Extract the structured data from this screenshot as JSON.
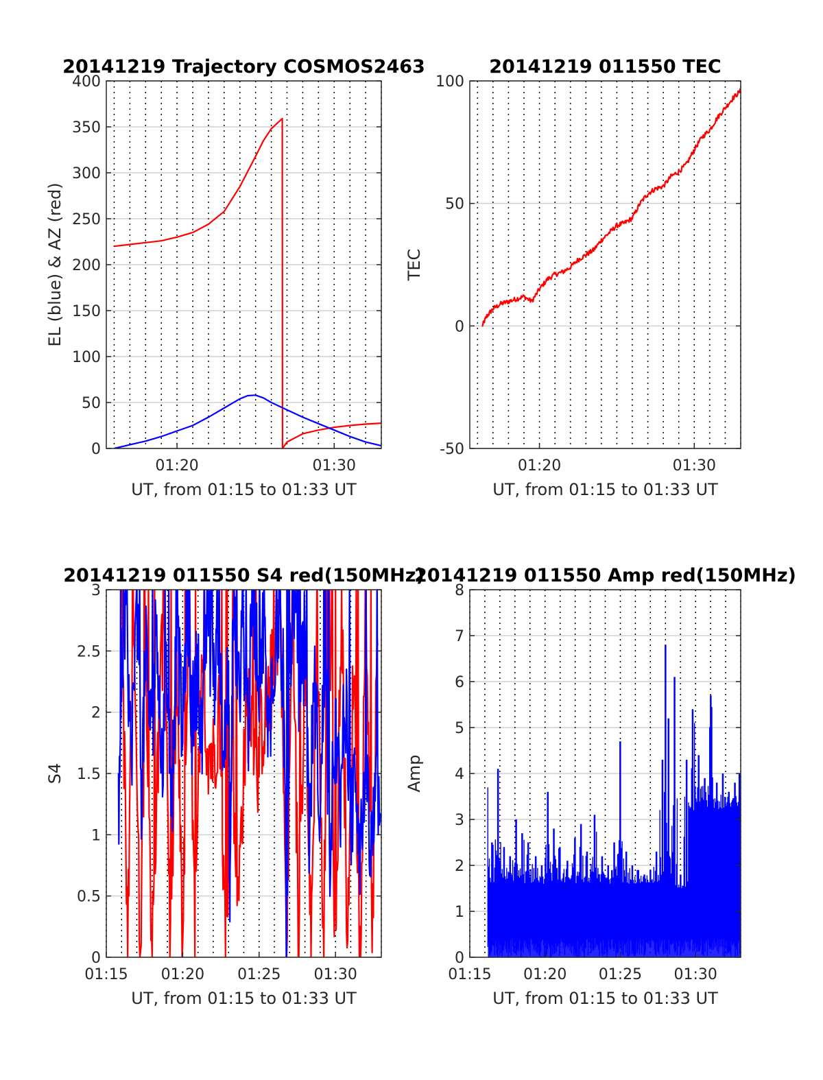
{
  "colors": {
    "red": "#ff0000",
    "blue": "#0000ff",
    "axis": "#262626",
    "grid": "#d0d0d0",
    "vgrid": "#000000"
  },
  "chart_data": [
    {
      "type": "line",
      "title": "20141219 Trajectory COSMOS2463",
      "xlabel": "UT, from 01:15 to 01:33 UT",
      "ylabel": "EL (blue) & AZ (red)",
      "xlim_min": [
        75.5,
        93
      ],
      "ylim": [
        0,
        400
      ],
      "yticks": [
        0,
        50,
        100,
        150,
        200,
        250,
        300,
        350,
        400
      ],
      "xtick_labels": [
        {
          "t": 80,
          "label": "01:20"
        },
        {
          "t": 90,
          "label": "01:30"
        }
      ],
      "grid": true,
      "series": [
        {
          "color": "red",
          "x": [
            76,
            77,
            78,
            79,
            80,
            81,
            82,
            83,
            84,
            85,
            85.5,
            86,
            86.5,
            86.7,
            86.71,
            87,
            88,
            89,
            90,
            91,
            92,
            93
          ],
          "y": [
            220,
            222,
            224,
            226,
            230,
            235,
            244,
            258,
            285,
            318,
            335,
            348,
            356,
            359,
            0,
            7,
            16,
            20,
            23,
            25,
            26.5,
            27.5
          ]
        },
        {
          "color": "blue",
          "x": [
            76,
            77,
            78,
            79,
            80,
            81,
            82,
            83,
            84,
            84.5,
            85,
            85.5,
            86,
            87,
            88,
            89,
            90,
            91,
            92,
            93
          ],
          "y": [
            0,
            4,
            8,
            13,
            19,
            25,
            34,
            44,
            54,
            57.5,
            58,
            55,
            50,
            42,
            34,
            27,
            20,
            13,
            7,
            3
          ]
        }
      ]
    },
    {
      "type": "line",
      "title": "20141219 011550 TEC",
      "xlabel": "UT, from 01:15 to 01:33 UT",
      "ylabel": "TEC",
      "xlim_min": [
        75.5,
        93
      ],
      "ylim": [
        -50,
        100
      ],
      "yticks": [
        -50,
        0,
        50,
        100
      ],
      "xtick_labels": [
        {
          "t": 80,
          "label": "01:20"
        },
        {
          "t": 90,
          "label": "01:30"
        }
      ],
      "grid": true,
      "series": [
        {
          "color": "red",
          "x": [
            76.3,
            76.6,
            77,
            77.5,
            78,
            78.5,
            79,
            79.5,
            80,
            80.5,
            81,
            81.5,
            82,
            82.5,
            83,
            83.5,
            84,
            84.5,
            85,
            85.5,
            86,
            86.5,
            87,
            87.5,
            88,
            88.5,
            89,
            89.5,
            90,
            90.5,
            91,
            91.5,
            92,
            92.5,
            93
          ],
          "y": [
            0,
            4,
            7,
            9,
            10,
            11,
            12,
            10,
            15,
            19,
            21,
            22,
            24,
            27,
            29,
            31,
            35,
            38,
            41,
            42,
            44,
            50,
            54,
            56,
            57,
            61,
            63,
            66,
            72,
            77,
            80,
            85,
            89,
            93,
            96
          ]
        }
      ]
    },
    {
      "type": "line",
      "title": "20141219 011550 S4 red(150MHz)",
      "xlabel": "UT, from 01:15 to 01:33 UT",
      "ylabel": "S4",
      "xlim_min": [
        75,
        93
      ],
      "ylim": [
        0,
        3
      ],
      "yticks": [
        0,
        0.5,
        1,
        1.5,
        2,
        2.5,
        3
      ],
      "xtick_labels": [
        {
          "t": 75,
          "label": "01:15"
        },
        {
          "t": 80,
          "label": "01:20"
        },
        {
          "t": 85,
          "label": "01:25"
        },
        {
          "t": 90,
          "label": "01:30"
        }
      ],
      "grid": true,
      "series": [
        {
          "color": "red",
          "x": [
            76,
            76.4,
            76.8,
            77.2,
            77.6,
            78,
            78.4,
            78.8,
            79.2,
            79.6,
            80,
            80.4,
            80.8,
            81.2,
            81.6,
            82,
            82.4,
            82.8,
            83.2,
            83.6,
            84,
            84.4,
            84.8,
            85.2,
            85.6,
            86,
            86.4,
            86.8,
            87.2,
            87.6,
            88,
            88.4,
            88.8,
            89.2,
            89.6,
            90,
            90.4,
            90.8,
            91.2,
            91.6,
            92,
            92.4,
            92.8
          ],
          "y": [
            3,
            0,
            3,
            0,
            2.6,
            0,
            1.7,
            3,
            0,
            2.4,
            0,
            3,
            0,
            2.2,
            1.8,
            1.6,
            2.1,
            0,
            1.8,
            0.3,
            1.6,
            2.2,
            1.5,
            1.9,
            2.1,
            2.4,
            3,
            0,
            3,
            0,
            2.7,
            0,
            2.9,
            0,
            3,
            0,
            3,
            0,
            2.5,
            0,
            3,
            0,
            3
          ]
        },
        {
          "color": "blue",
          "x": [
            75.8,
            76,
            76.3,
            76.6,
            77,
            77.3,
            77.6,
            78,
            78.3,
            78.6,
            79,
            79.3,
            79.6,
            80,
            80.3,
            80.6,
            81,
            81.3,
            81.6,
            82,
            82.3,
            82.6,
            83,
            83.1,
            83.3,
            83.6,
            84,
            84.3,
            84.6,
            85,
            85.3,
            85.6,
            86,
            86.3,
            86.6,
            86.8,
            87,
            87.3,
            87.6,
            88,
            88.3,
            88.6,
            89,
            89.3,
            89.6,
            90,
            90.3,
            90.6,
            91,
            91.3,
            91.6,
            92,
            92.3,
            92.6,
            93
          ],
          "y": [
            1.1,
            2.4,
            3,
            1.6,
            2.8,
            1.4,
            2.5,
            1.7,
            2.9,
            1.5,
            2.3,
            1.3,
            2.7,
            1.8,
            3,
            1.9,
            2.4,
            1.7,
            3,
            2.1,
            2.8,
            1.9,
            2.2,
            0.3,
            3,
            2.1,
            2.6,
            1.9,
            3,
            2.3,
            2.7,
            1.8,
            2.5,
            2.9,
            2.2,
            0,
            2.4,
            3,
            2.1,
            2.6,
            0.9,
            2.4,
            1.1,
            2.6,
            0.8,
            1.9,
            1.2,
            2.3,
            1,
            1.6,
            0.9,
            1.4,
            0.8,
            1.2,
            1.5
          ]
        }
      ]
    },
    {
      "type": "line",
      "title": "20141219 011550 Amp red(150MHz)",
      "xlabel": "UT, from 01:15 to 01:33 UT",
      "ylabel": "Amp",
      "xlim_min": [
        75,
        93
      ],
      "ylim": [
        0,
        8
      ],
      "yticks": [
        0,
        1,
        2,
        3,
        4,
        5,
        6,
        7,
        8
      ],
      "xtick_labels": [
        {
          "t": 75,
          "label": "01:15"
        },
        {
          "t": 80,
          "label": "01:20"
        },
        {
          "t": 85,
          "label": "01:25"
        },
        {
          "t": 90,
          "label": "01:30"
        }
      ],
      "grid": true,
      "peaks": {
        "x": [
          76.2,
          76.5,
          76.9,
          77.3,
          77.7,
          78.1,
          78.5,
          78.9,
          79.4,
          79.8,
          80.2,
          80.6,
          81,
          81.5,
          82,
          82.4,
          82.8,
          83.3,
          83.8,
          84.2,
          84.6,
          85,
          85.4,
          85.8,
          86.2,
          86.6,
          87,
          87.4,
          87.8,
          88,
          88.2,
          88.6,
          89,
          89.4,
          89.8,
          90.2,
          90.6,
          91,
          91.4,
          91.8,
          92.2,
          92.6,
          92.9
        ],
        "y": [
          3.7,
          2.5,
          4.1,
          2.4,
          2.2,
          3,
          2.7,
          2.5,
          2.2,
          2,
          3.6,
          2.8,
          2.4,
          2.1,
          2.6,
          2.9,
          2.3,
          3.1,
          2.2,
          2,
          2.5,
          4.7,
          2.3,
          2,
          1.9,
          1.8,
          1.9,
          2.3,
          4.3,
          6.8,
          5.2,
          6.1,
          1.8,
          4.3,
          5.4,
          4.4,
          3.9,
          5.7,
          3.8,
          4,
          3.6,
          3.8,
          4
        ]
      },
      "floor": 0.4
    }
  ]
}
